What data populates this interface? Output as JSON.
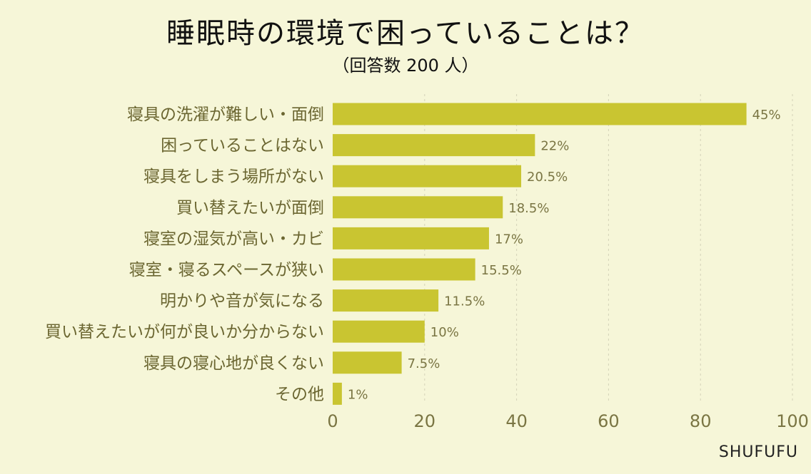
{
  "title": "睡眠時の環境で困っていることは？",
  "subtitle": "（回答数 200 人）",
  "brand": "SHUFUFU",
  "colors": {
    "bar": "#c9c531",
    "background": "#f6f6d8",
    "label": "#6b6631",
    "tick": "#7a7543",
    "grid": "#d4d2b8"
  },
  "chart_data": {
    "type": "bar",
    "orientation": "horizontal",
    "title": "睡眠時の環境で困っていることは？",
    "subtitle": "（回答数 200 人）",
    "categories": [
      "寝具の洗濯が難しい・面倒",
      "困っていることはない",
      "寝具をしまう場所がない",
      "買い替えたいが面倒",
      "寝室の湿気が高い・カビ",
      "寝室・寝るスペースが狭い",
      "明かりや音が気になる",
      "買い替えたいが何が良いか分からない",
      "寝具の寝心地が良くない",
      "その他"
    ],
    "values": [
      90,
      44,
      41,
      37,
      34,
      31,
      23,
      20,
      15,
      2
    ],
    "data_labels": [
      "45%",
      "22%",
      "20.5%",
      "18.5%",
      "17%",
      "15.5%",
      "11.5%",
      "10%",
      "7.5%",
      "1%"
    ],
    "xlim": [
      0,
      100
    ],
    "xticks": [
      0,
      20,
      40,
      60,
      80,
      100
    ],
    "grid": true
  }
}
